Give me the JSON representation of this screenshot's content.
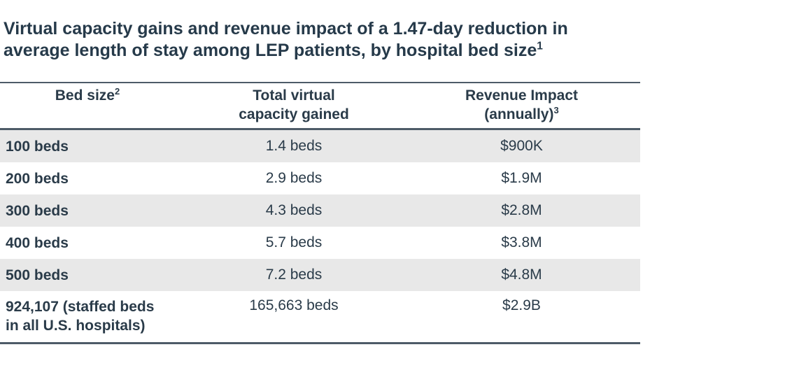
{
  "title": {
    "line1": "Virtual capacity gains and revenue impact of a 1.47-day reduction in",
    "line2": "average length of stay among LEP patients, by hospital bed size",
    "footnote_marker": "1"
  },
  "table": {
    "header": {
      "col1": {
        "label": "Bed size",
        "footnote_marker": "2"
      },
      "col2": {
        "line1": "Total virtual",
        "line2": "capacity gained"
      },
      "col3": {
        "line1": "Revenue Impact",
        "line2": "(annually)",
        "footnote_marker": "3"
      }
    },
    "rows": [
      {
        "bed_size": "100 beds",
        "capacity": "1.4 beds",
        "revenue": "$900K",
        "shaded": true
      },
      {
        "bed_size": "200 beds",
        "capacity": "2.9 beds",
        "revenue": "$1.9M",
        "shaded": false
      },
      {
        "bed_size": "300 beds",
        "capacity": "4.3 beds",
        "revenue": "$2.8M",
        "shaded": true
      },
      {
        "bed_size": "400 beds",
        "capacity": "5.7 beds",
        "revenue": "$3.8M",
        "shaded": false
      },
      {
        "bed_size": "500 beds",
        "capacity": "7.2 beds",
        "revenue": "$4.8M",
        "shaded": true
      },
      {
        "bed_size": "924,107 (staffed beds in all U.S. hospitals)",
        "bed_size_line1": "924,107 (staffed beds",
        "bed_size_line2": "in all U.S. hospitals)",
        "capacity": "165,663 beds",
        "revenue": "$2.9B",
        "shaded": false
      }
    ]
  },
  "colors": {
    "text": "#2a3b49",
    "rule": "#4d5b68",
    "shaded_row": "#e8e8e8",
    "background": "#ffffff"
  },
  "chart_data": {
    "type": "table",
    "title": "Virtual capacity gains and revenue impact of a 1.47-day reduction in average length of stay among LEP patients, by hospital bed size",
    "columns": [
      "Bed size",
      "Total virtual capacity gained",
      "Revenue Impact (annually)"
    ],
    "rows": [
      [
        "100 beds",
        "1.4 beds",
        "$900K"
      ],
      [
        "200 beds",
        "2.9 beds",
        "$1.9M"
      ],
      [
        "300 beds",
        "4.3 beds",
        "$2.8M"
      ],
      [
        "400 beds",
        "5.7 beds",
        "$3.8M"
      ],
      [
        "500 beds",
        "7.2 beds",
        "$4.8M"
      ],
      [
        "924,107 (staffed beds in all U.S. hospitals)",
        "165,663 beds",
        "$2.9B"
      ]
    ],
    "numeric": {
      "bed_sizes": [
        100,
        200,
        300,
        400,
        500,
        924107
      ],
      "virtual_capacity_beds": [
        1.4,
        2.9,
        4.3,
        5.7,
        7.2,
        165663
      ],
      "revenue_impact": [
        "$900K",
        "$1.9M",
        "$2.8M",
        "$3.8M",
        "$4.8M",
        "$2.9B"
      ]
    },
    "footnote_markers": {
      "title": "1",
      "bed_size_column": "2",
      "revenue_column": "3"
    }
  }
}
